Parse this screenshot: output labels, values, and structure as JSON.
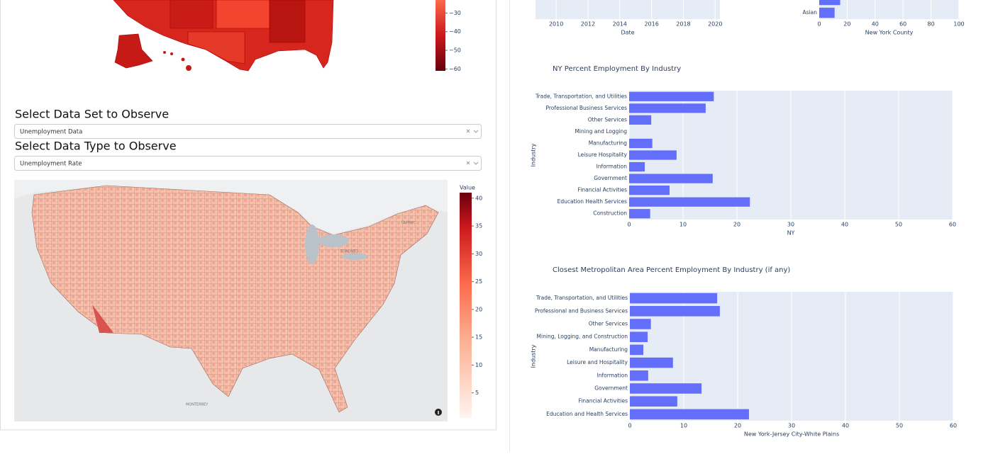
{
  "state_map": {
    "colorbar": {
      "clim": [
        -61,
        -23
      ],
      "ticks": [
        {
          "value": -30,
          "label": "−30"
        },
        {
          "value": -40,
          "label": "−40"
        },
        {
          "value": -50,
          "label": "−50"
        },
        {
          "value": -60,
          "label": "−60"
        }
      ]
    }
  },
  "controls": {
    "dataset_heading": "Select Data Set to Observe",
    "dataset_value": "Unemployment Data",
    "type_heading": "Select Data Type to Observe",
    "type_value": "Unemployment Rate"
  },
  "county_map": {
    "colorbar": {
      "title": "Value",
      "clim": [
        0.5,
        41
      ],
      "ticks": [
        5,
        10,
        15,
        20,
        25,
        30,
        35,
        40
      ]
    },
    "places": [
      "Québec",
      "TORONTO",
      "MONTERREY"
    ]
  },
  "chart_data": [
    {
      "type": "line",
      "x_label": "Date",
      "xlim": [
        2008.7,
        2020.3
      ],
      "xticks": [
        2010,
        2012,
        2014,
        2016,
        2018,
        2020
      ]
    },
    {
      "type": "hbar",
      "x_label": "New York County",
      "categories": [
        null,
        "Asian"
      ],
      "values": [
        15,
        11
      ],
      "color": "#636efa",
      "xlim": [
        0,
        100
      ],
      "xticks": [
        0,
        20,
        40,
        60,
        80,
        100
      ]
    },
    {
      "type": "hbar",
      "title": "NY Percent Employment By Industry",
      "y_label": "Industry",
      "x_label": "NY",
      "categories": [
        "Trade, Transportation, and Utilities",
        "Professional  Business Services",
        "Other Services",
        "Mining and Logging",
        "Manufacturing",
        "Leisure  Hospitality",
        "Information",
        "Government",
        "Financial Activities",
        "Education  Health Services",
        "Construction"
      ],
      "values": [
        15.7,
        14.2,
        4.1,
        0,
        4.3,
        8.8,
        2.9,
        15.5,
        7.5,
        22.4,
        3.9
      ],
      "color": "#636efa",
      "xlim": [
        0,
        60
      ],
      "xticks": [
        0,
        10,
        20,
        30,
        40,
        50,
        60
      ],
      "grid": true
    },
    {
      "type": "hbar",
      "title": "Closest Metropolitan Area Percent Employment By Industry (if any)",
      "y_label": "Industry",
      "x_label": "New York-Jersey City-White Plains",
      "categories": [
        "Trade, Transportation, and Utilities",
        "Professional and Business Services",
        "Other Services",
        "Mining, Logging, and Construction",
        "Manufacturing",
        "Leisure and Hospitality",
        "Information",
        "Government",
        "Financial Activities",
        "Education and Health Services"
      ],
      "values": [
        16.2,
        16.7,
        3.9,
        3.3,
        2.5,
        8.0,
        3.4,
        13.3,
        8.8,
        22.1
      ],
      "color": "#636efa",
      "xlim": [
        0,
        60
      ],
      "xticks": [
        0,
        10,
        20,
        30,
        40,
        50,
        60
      ],
      "grid": true
    }
  ]
}
